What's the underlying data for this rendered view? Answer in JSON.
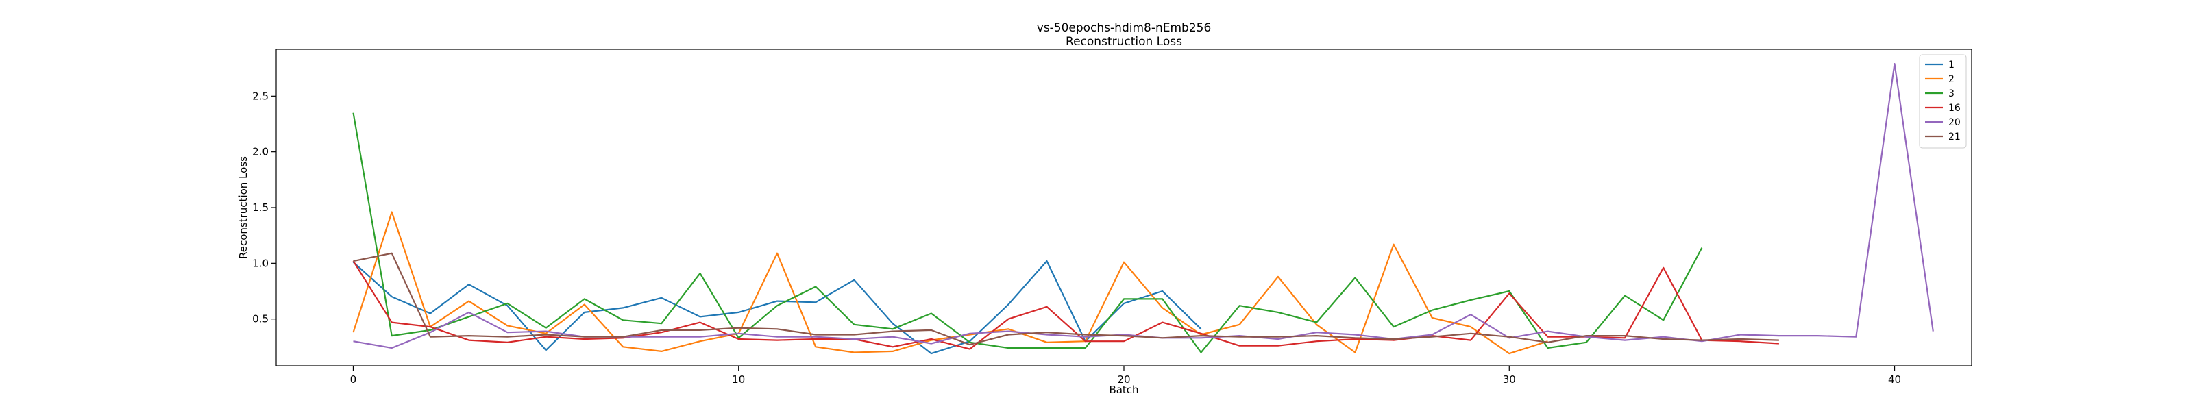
{
  "chart_data": {
    "type": "line",
    "title": "vs-50epochs-hdim8-nEmb256",
    "subtitle": "Reconstruction Loss",
    "xlabel": "Batch",
    "ylabel": "Reconstruction Loss",
    "xlim": [
      -2,
      42
    ],
    "ylim": [
      0.08,
      2.92
    ],
    "xticks": [
      0,
      10,
      20,
      30,
      40
    ],
    "yticks": [
      0.5,
      1.0,
      1.5,
      2.0,
      2.5
    ],
    "ytick_labels": [
      "0.5",
      "1.0",
      "1.5",
      "2.0",
      "2.5"
    ],
    "grid": false,
    "legend_position": "top-right",
    "series": [
      {
        "name": "1",
        "color": "#1f77b4",
        "values": [
          1.01,
          0.7,
          0.55,
          0.81,
          0.62,
          0.22,
          0.56,
          0.6,
          0.69,
          0.52,
          0.56,
          0.66,
          0.65,
          0.85,
          0.46,
          0.19,
          0.3,
          0.63,
          1.02,
          0.3,
          0.64,
          0.75,
          0.41
        ]
      },
      {
        "name": "2",
        "color": "#ff7f0e",
        "values": [
          0.38,
          1.46,
          0.43,
          0.66,
          0.44,
          0.37,
          0.63,
          0.25,
          0.21,
          0.3,
          0.37,
          1.09,
          0.25,
          0.2,
          0.21,
          0.31,
          0.36,
          0.41,
          0.29,
          0.3,
          1.01,
          0.6,
          0.36,
          0.45,
          0.88,
          0.45,
          0.2,
          1.17,
          0.51,
          0.43,
          0.19,
          0.3
        ]
      },
      {
        "name": "3",
        "color": "#2ca02c",
        "values": [
          2.35,
          0.35,
          0.4,
          0.52,
          0.64,
          0.42,
          0.68,
          0.49,
          0.46,
          0.91,
          0.33,
          0.62,
          0.79,
          0.45,
          0.41,
          0.55,
          0.29,
          0.24,
          0.24,
          0.24,
          0.68,
          0.68,
          0.2,
          0.62,
          0.56,
          0.47,
          0.87,
          0.43,
          0.58,
          0.67,
          0.75,
          0.24,
          0.29,
          0.71,
          0.49,
          1.14
        ]
      },
      {
        "name": "16",
        "color": "#d62728",
        "values": [
          1.02,
          0.47,
          0.43,
          0.31,
          0.29,
          0.34,
          0.32,
          0.33,
          0.38,
          0.47,
          0.32,
          0.31,
          0.32,
          0.32,
          0.25,
          0.32,
          0.23,
          0.5,
          0.61,
          0.3,
          0.3,
          0.47,
          0.37,
          0.26,
          0.26,
          0.3,
          0.32,
          0.31,
          0.35,
          0.31,
          0.73,
          0.34,
          0.34,
          0.33,
          0.96,
          0.31,
          0.3,
          0.28
        ]
      },
      {
        "name": "20",
        "color": "#9467bd",
        "values": [
          0.3,
          0.24,
          0.38,
          0.56,
          0.38,
          0.39,
          0.34,
          0.34,
          0.34,
          0.34,
          0.37,
          0.34,
          0.34,
          0.32,
          0.34,
          0.28,
          0.37,
          0.39,
          0.36,
          0.34,
          0.36,
          0.33,
          0.33,
          0.35,
          0.32,
          0.38,
          0.36,
          0.32,
          0.36,
          0.54,
          0.33,
          0.39,
          0.34,
          0.31,
          0.34,
          0.3,
          0.36,
          0.35,
          0.35,
          0.34,
          2.79,
          0.39
        ]
      },
      {
        "name": "21",
        "color": "#8c564b",
        "values": [
          1.02,
          1.09,
          0.34,
          0.35,
          0.34,
          0.36,
          0.34,
          0.34,
          0.4,
          0.4,
          0.42,
          0.41,
          0.36,
          0.36,
          0.39,
          0.4,
          0.27,
          0.36,
          0.38,
          0.36,
          0.35,
          0.33,
          0.35,
          0.34,
          0.34,
          0.35,
          0.33,
          0.32,
          0.34,
          0.37,
          0.34,
          0.29,
          0.35,
          0.35,
          0.32,
          0.31,
          0.32,
          0.31
        ]
      }
    ]
  }
}
